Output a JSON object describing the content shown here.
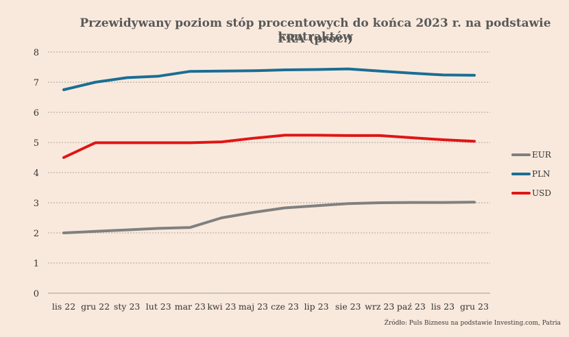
{
  "chart_data": {
    "type": "line",
    "title_line1": "Przewidywany poziom stóp procentowych do końca 2023 r. na podstawie kontraktów",
    "title_line2": "FRA (proc.)",
    "source": "Źródło: Puls Biznesu na podstawie Investing.com, Patria",
    "categories": [
      "lis 22",
      "gru 22",
      "sty 23",
      "lut 23",
      "mar 23",
      "kwi 23",
      "maj 23",
      "cze 23",
      "lip 23",
      "sie 23",
      "wrz 23",
      "paź 23",
      "lis 23",
      "gru 23"
    ],
    "yticks": [
      "0",
      "1",
      "2",
      "3",
      "4",
      "5",
      "6",
      "7",
      "8"
    ],
    "ylim": [
      0,
      8
    ],
    "grid": true,
    "legend_position": "right",
    "series": [
      {
        "name": "EUR",
        "color": "#808080",
        "values": [
          2.0,
          2.05,
          2.1,
          2.15,
          2.18,
          2.5,
          2.68,
          2.83,
          2.9,
          2.97,
          3.0,
          3.01,
          3.01,
          3.02
        ]
      },
      {
        "name": "PLN",
        "color": "#1a6e94",
        "values": [
          6.75,
          7.0,
          7.15,
          7.2,
          7.36,
          7.37,
          7.38,
          7.41,
          7.42,
          7.44,
          7.37,
          7.3,
          7.24,
          7.23
        ]
      },
      {
        "name": "USD",
        "color": "#e01515",
        "values": [
          4.5,
          4.99,
          4.99,
          4.99,
          4.99,
          5.02,
          5.14,
          5.24,
          5.24,
          5.23,
          5.23,
          5.16,
          5.09,
          5.04
        ]
      }
    ]
  }
}
